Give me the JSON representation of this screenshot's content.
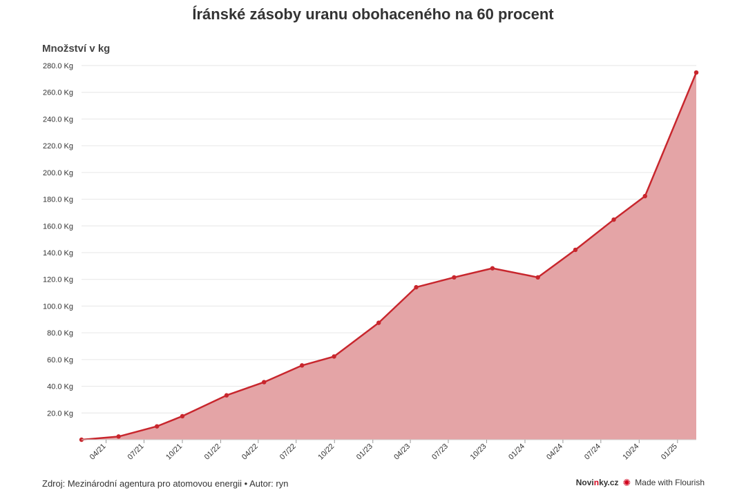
{
  "title": "Íránské zásoby uranu obohaceného na 60 procent",
  "footer": {
    "source": "Zdroj: Mezinárodní agentura pro atomovou energii • Autor: ryn",
    "brand_pre": "Novi",
    "brand_accent": "n",
    "brand_post": "ky.cz",
    "flourish": "Made with Flourish"
  },
  "colors": {
    "line": "#c8262d",
    "fill": "#e4a4a6",
    "grid": "#e6e6e6"
  },
  "chart_data": {
    "type": "area",
    "title": "Íránské zásoby uranu obohaceného na 60 procent",
    "xlabel": "",
    "ylabel": "Množství v kg",
    "ylim": [
      0,
      280
    ],
    "xlim": [
      "2021-02-01",
      "2025-02-15"
    ],
    "yticks": [
      "20.0 Kg",
      "40.0 Kg",
      "60.0 Kg",
      "80.0 Kg",
      "100.0 Kg",
      "120.0 Kg",
      "140.0 Kg",
      "160.0 Kg",
      "180.0 Kg",
      "200.0 Kg",
      "220.0 Kg",
      "240.0 Kg",
      "260.0 Kg",
      "280.0 Kg"
    ],
    "xticks": [
      "04/21",
      "07/21",
      "10/21",
      "01/22",
      "04/22",
      "07/22",
      "10/22",
      "01/23",
      "04/23",
      "07/23",
      "10/23",
      "01/24",
      "04/24",
      "07/24",
      "10/24",
      "01/25"
    ],
    "grid": true,
    "series": [
      {
        "x": [
          "2021-02-01",
          "2021-05-01",
          "2021-08-01",
          "2021-10-01",
          "2022-01-15",
          "2022-04-15",
          "2022-07-15",
          "2022-09-30",
          "2023-01-15",
          "2023-04-15",
          "2023-07-15",
          "2023-10-15",
          "2024-02-01",
          "2024-05-01",
          "2024-08-01",
          "2024-10-15",
          "2025-02-15"
        ],
        "y": [
          0,
          2.4,
          10,
          17.6,
          33.2,
          43.1,
          55.6,
          62.3,
          87.5,
          114.1,
          121.5,
          128.3,
          121.5,
          142.1,
          164.7,
          182.3,
          274.8
        ]
      }
    ]
  }
}
